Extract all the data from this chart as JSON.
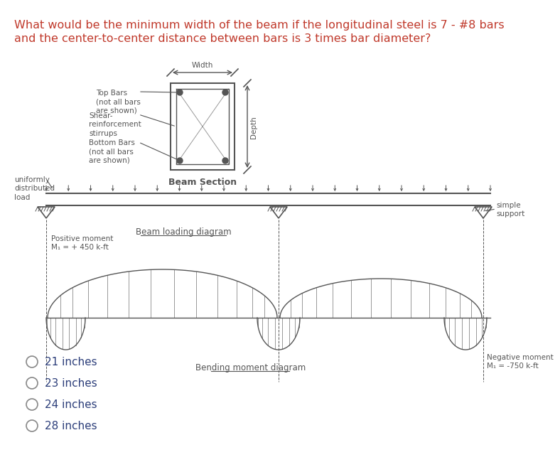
{
  "title_line1": "What would be the minimum width of the beam if the longitudinal steel is 7 - #8 bars",
  "title_line2": "and the center-to-center distance between bars is 3 times bar diameter?",
  "title_color": "#c0392b",
  "title_fontsize": 11.5,
  "bg_color": "#ffffff",
  "text_color": "#2c3e7a",
  "diagram_color": "#555555",
  "choices": [
    "21 inches",
    "23 inches",
    "24 inches",
    "28 inches"
  ],
  "beam_section_label": "Beam Section",
  "beam_loading_label": "Beam loading diagram",
  "bending_moment_label": "Bending moment diagram",
  "width_label": "Width",
  "depth_label": "Depth",
  "top_bars_label": "Top Bars\n(not all bars\nare shown)",
  "shear_label": "Shear-\nreinforcement\nstirrups",
  "bottom_bars_label": "Bottom Bars\n(not all bars\nare shown)",
  "simple_support_label": "simple\nsupport",
  "positive_moment_label": "Positive moment\nM₁ = + 450 k-ft",
  "negative_moment_label": "Negative moment\nM₁ = -750 k-ft",
  "uniformly_label": "uniformly\ndistributed\nload"
}
